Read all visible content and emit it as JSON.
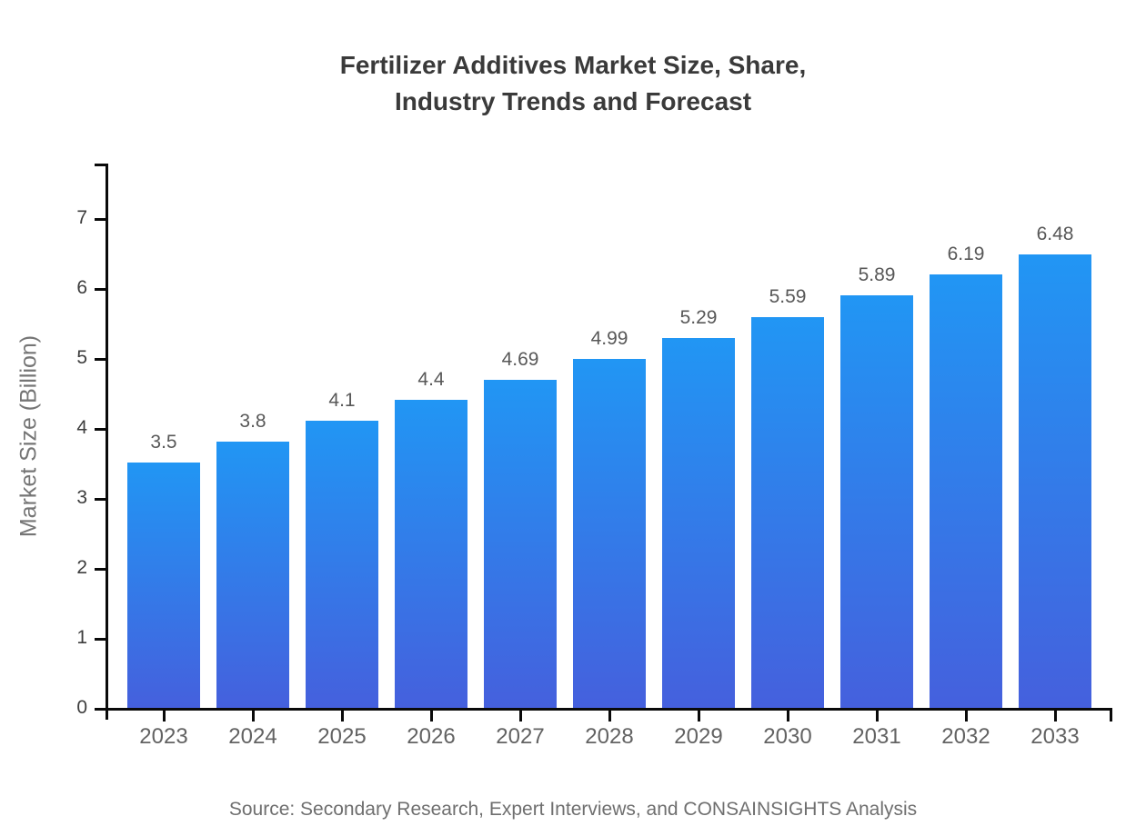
{
  "title": {
    "line1": "Fertilizer Additives Market Size, Share,",
    "line2": "Industry Trends and Forecast"
  },
  "source": "Source: Secondary Research, Expert Interviews, and CONSAINSIGHTS Analysis",
  "chart_data": {
    "type": "bar",
    "title": "Fertilizer Additives Market Size, Share, Industry Trends and Forecast",
    "categories": [
      "2023",
      "2024",
      "2025",
      "2026",
      "2027",
      "2028",
      "2029",
      "2030",
      "2031",
      "2032",
      "2033"
    ],
    "values": [
      3.5,
      3.8,
      4.1,
      4.4,
      4.69,
      4.99,
      5.29,
      5.59,
      5.89,
      6.19,
      6.48
    ],
    "labels": [
      "3.5",
      "3.8",
      "4.1",
      "4.4",
      "4.69",
      "4.99",
      "5.29",
      "5.59",
      "5.89",
      "6.19",
      "6.48"
    ],
    "xlabel": "",
    "ylabel": "Market Size (Billion)",
    "ylim": [
      0,
      7.78
    ],
    "yticks": [
      0,
      1,
      2,
      3,
      4,
      5,
      6,
      7
    ],
    "grid": false,
    "legend": false,
    "colors": {
      "bar_gradient_top": "#2196F4",
      "bar_gradient_bottom": "#4560DD",
      "axis": "#0a0a0a",
      "title_text": "#3a3a3a",
      "tick_text": "#3d3d3d",
      "category_text": "#636363",
      "value_label_text": "#585858",
      "muted_text": "#757575"
    }
  }
}
